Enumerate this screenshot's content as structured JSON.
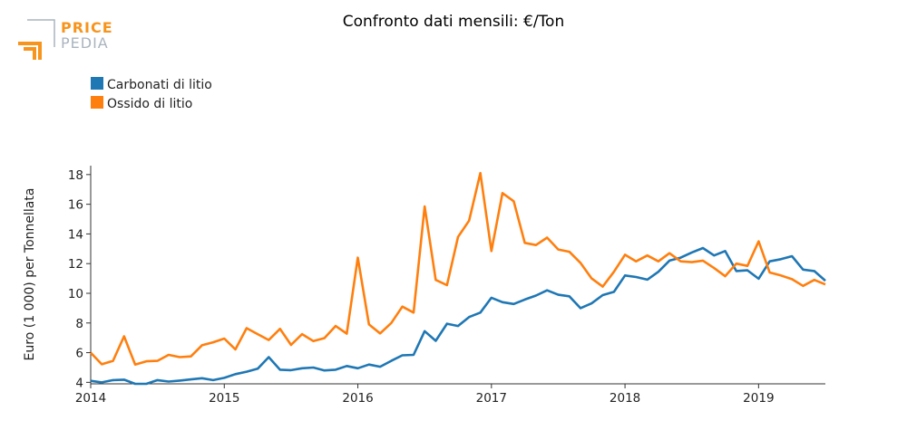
{
  "brand": {
    "line1": "PRICE",
    "line2": "PEDIA",
    "accent": "#F7941D",
    "muted": "#AAB4BE"
  },
  "colors": {
    "carbonati": "#1F77B4",
    "ossido": "#FF7F0E"
  },
  "chart_data": {
    "type": "line",
    "title": "Confronto dati mensili: €/Ton",
    "ylabel": "Euro (1 000) per Tonnellata",
    "xlabel": "",
    "xlim": [
      2014.0,
      2019.5
    ],
    "ylim": [
      3.9,
      18.6
    ],
    "yticks": [
      4,
      6,
      8,
      10,
      12,
      14,
      16,
      18
    ],
    "xticks": [
      2014,
      2015,
      2016,
      2017,
      2018,
      2019
    ],
    "xtick_labels": [
      "2014",
      "2015",
      "2016",
      "2017",
      "2018",
      "2019"
    ],
    "legend": "top-left",
    "grid": false,
    "x": [
      2014.0,
      2014.083,
      2014.167,
      2014.25,
      2014.333,
      2014.417,
      2014.5,
      2014.583,
      2014.667,
      2014.75,
      2014.833,
      2014.917,
      2015.0,
      2015.083,
      2015.167,
      2015.25,
      2015.333,
      2015.417,
      2015.5,
      2015.583,
      2015.667,
      2015.75,
      2015.833,
      2015.917,
      2016.0,
      2016.083,
      2016.167,
      2016.25,
      2016.333,
      2016.417,
      2016.5,
      2016.583,
      2016.667,
      2016.75,
      2016.833,
      2016.917,
      2017.0,
      2017.083,
      2017.167,
      2017.25,
      2017.333,
      2017.417,
      2017.5,
      2017.583,
      2017.667,
      2017.75,
      2017.833,
      2017.917,
      2018.0,
      2018.083,
      2018.167,
      2018.25,
      2018.333,
      2018.417,
      2018.5,
      2018.583,
      2018.667,
      2018.75,
      2018.833,
      2018.917,
      2019.0,
      2019.083,
      2019.167,
      2019.25,
      2019.333,
      2019.417,
      2019.5
    ],
    "series": [
      {
        "name": "Carbonati di litio",
        "color": "#1F77B4",
        "values": [
          4.1,
          4.0,
          4.15,
          4.18,
          3.9,
          3.9,
          4.15,
          4.05,
          4.12,
          4.2,
          4.28,
          4.15,
          4.3,
          4.55,
          4.72,
          4.92,
          5.7,
          4.85,
          4.82,
          4.95,
          5.0,
          4.8,
          4.85,
          5.1,
          4.95,
          5.2,
          5.05,
          5.45,
          5.82,
          5.85,
          7.45,
          6.8,
          7.95,
          7.8,
          8.4,
          8.7,
          9.7,
          9.4,
          9.28,
          9.58,
          9.85,
          10.2,
          9.9,
          9.8,
          9.0,
          9.32,
          9.88,
          10.1,
          11.2,
          11.1,
          10.92,
          11.45,
          12.2,
          12.4,
          12.75,
          13.05,
          12.55,
          12.85,
          11.5,
          11.55,
          10.98,
          12.15,
          12.3,
          12.5,
          11.6,
          11.5,
          10.85
        ]
      },
      {
        "name": "Ossido di litio",
        "color": "#FF7F0E",
        "values": [
          6.0,
          5.22,
          5.45,
          7.1,
          5.2,
          5.42,
          5.45,
          5.85,
          5.7,
          5.75,
          6.5,
          6.7,
          6.95,
          6.22,
          7.65,
          7.25,
          6.85,
          7.6,
          6.52,
          7.25,
          6.78,
          6.98,
          7.8,
          7.28,
          12.4,
          7.9,
          7.3,
          8.0,
          9.1,
          8.7,
          15.85,
          10.9,
          10.55,
          13.8,
          14.9,
          18.1,
          12.85,
          16.75,
          16.2,
          13.4,
          13.25,
          13.75,
          12.95,
          12.8,
          12.05,
          11.0,
          10.45,
          11.45,
          12.6,
          12.15,
          12.55,
          12.15,
          12.7,
          12.15,
          12.1,
          12.2,
          11.7,
          11.15,
          12.0,
          11.85,
          13.5,
          11.4,
          11.2,
          10.95,
          10.5,
          10.9,
          10.6
        ]
      }
    ]
  }
}
